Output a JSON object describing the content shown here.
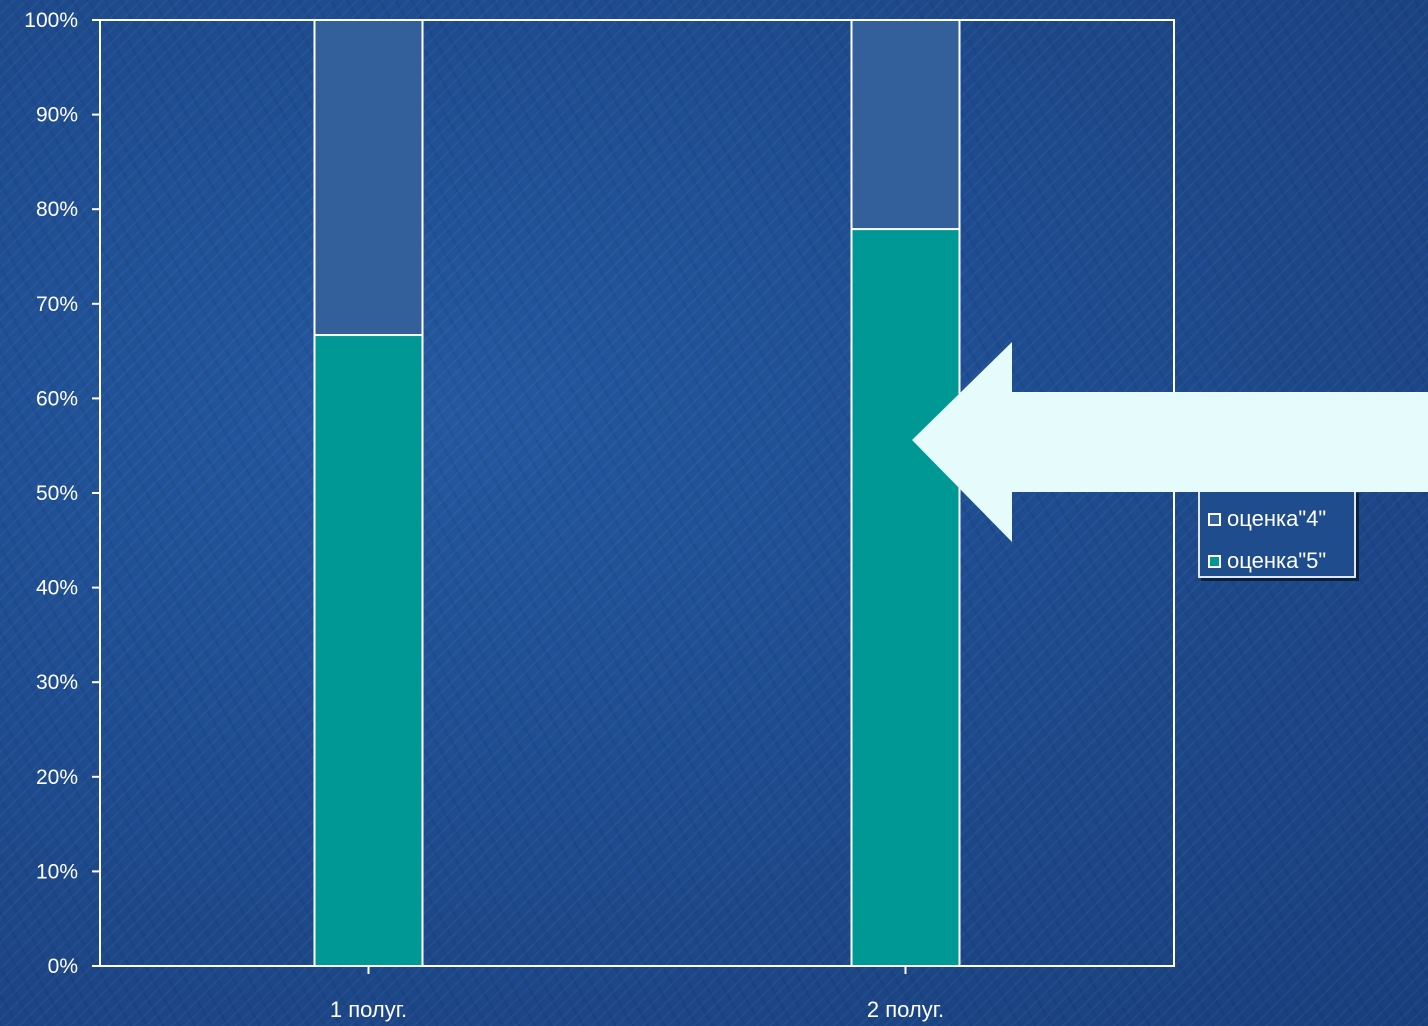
{
  "chart_data": {
    "type": "bar",
    "stacked": true,
    "percent": true,
    "categories": [
      "1 полуг.",
      "2 полуг."
    ],
    "series": [
      {
        "name": "оценка\"5\"",
        "values": [
          66.7,
          77.9
        ],
        "color": "#009894"
      },
      {
        "name": "оценка\"4\"",
        "values": [
          33.3,
          22.1
        ],
        "color": "#33609a"
      }
    ],
    "y_ticks": [
      "0%",
      "10%",
      "20%",
      "30%",
      "40%",
      "50%",
      "60%",
      "70%",
      "80%",
      "90%",
      "100%"
    ],
    "ylim": [
      0,
      100
    ],
    "title": "",
    "xlabel": "",
    "ylabel": "",
    "grid": false,
    "legend_position": "right",
    "legend_order": [
      "оценка\"4\"",
      "оценка\"5\""
    ]
  },
  "colors": {
    "background": "#1d4a8c",
    "axis": "#ffffff",
    "arrow": "#e6fbfc"
  },
  "decorations": {
    "arrow_icon": "left-arrow-icon"
  }
}
